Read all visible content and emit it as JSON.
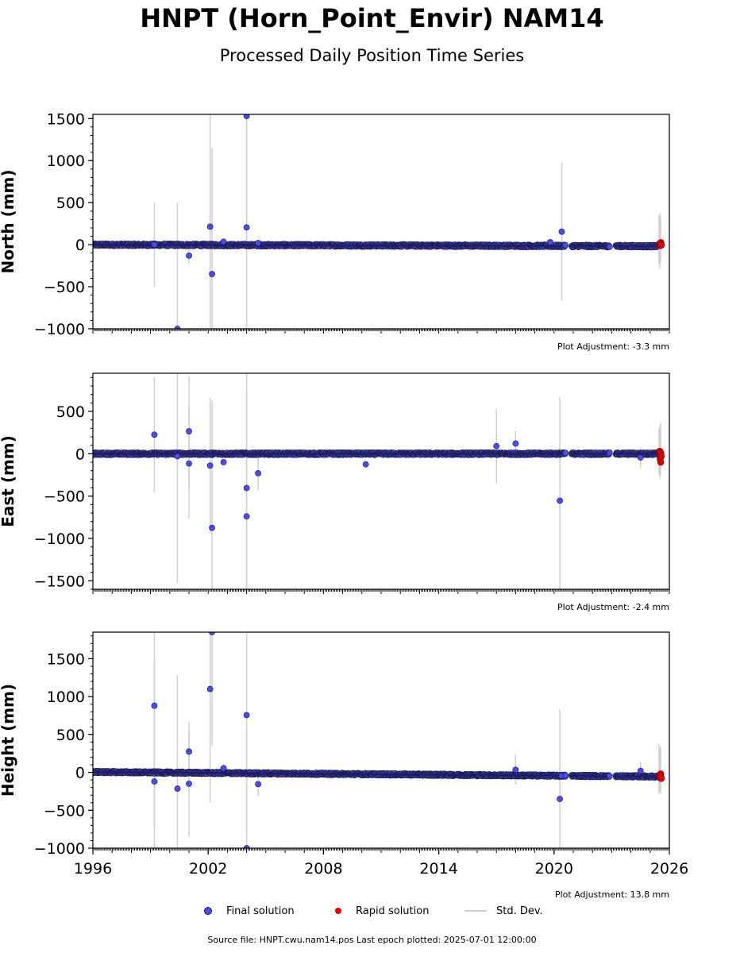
{
  "title": "HNPT (Horn_Point_Envir) NAM14",
  "subtitle": "Processed Daily Position Time Series",
  "source_text": "Source file: HNPT.cwu.nam14.pos  Last epoch plotted: 2025-07-01 12:00:00",
  "legend": {
    "final": "Final solution",
    "rapid": "Rapid solution",
    "stddev": "Std. Dev."
  },
  "colors": {
    "final": "#4b4bf0",
    "rapid": "#e00000",
    "stddev": "#cfcfcf",
    "marker_edge": "#1a1a4a"
  },
  "chart_data": [
    {
      "type": "scatter",
      "ylabel": "North (mm)",
      "adjustment": "Plot Adjustment: -3.3 mm",
      "xlim": [
        1996,
        2026
      ],
      "ylim": [
        -1000,
        1550
      ],
      "yticks": [
        -1000,
        -500,
        0,
        500,
        1000,
        1500
      ],
      "baseline": [
        [
          1996.0,
          0
        ],
        [
          2025.5,
          -18
        ]
      ],
      "outliers": [
        [
          1999.2,
          0,
          500
        ],
        [
          2000.4,
          -1000,
          1500
        ],
        [
          2001.0,
          -130,
          100
        ],
        [
          2002.1,
          215,
          1400
        ],
        [
          2002.2,
          -350,
          1500
        ],
        [
          2002.8,
          35,
          0
        ],
        [
          2004.0,
          1530,
          1500
        ],
        [
          2004.0,
          205,
          1500
        ],
        [
          2020.4,
          155,
          820
        ],
        [
          2004.6,
          20,
          0
        ],
        [
          2019.8,
          30,
          0
        ]
      ],
      "rapid": [
        [
          2025.5,
          15
        ],
        [
          2025.52,
          -10
        ],
        [
          2025.55,
          5
        ],
        [
          2025.56,
          25
        ],
        [
          2025.58,
          -5
        ]
      ],
      "gaps": [
        [
          2020.6,
          2020.9
        ],
        [
          2022.9,
          2023.2
        ]
      ]
    },
    {
      "type": "scatter",
      "ylabel": "East (mm)",
      "adjustment": "Plot Adjustment: -2.4 mm",
      "xlim": [
        1996,
        2026
      ],
      "ylim": [
        -1600,
        950
      ],
      "yticks": [
        -1500,
        -1000,
        -500,
        0,
        500
      ],
      "baseline": [
        [
          1996.0,
          0
        ],
        [
          2025.5,
          0
        ]
      ],
      "outliers": [
        [
          1999.2,
          225,
          680
        ],
        [
          2000.4,
          -30,
          1500
        ],
        [
          2001.0,
          265,
          650
        ],
        [
          2001.0,
          -115,
          650
        ],
        [
          2002.1,
          -140,
          800
        ],
        [
          2002.2,
          -875,
          1500
        ],
        [
          2002.8,
          -100,
          0
        ],
        [
          2004.0,
          -405,
          1500
        ],
        [
          2004.0,
          -740,
          1500
        ],
        [
          2004.6,
          -230,
          200
        ],
        [
          2010.2,
          -125,
          0
        ],
        [
          2017.0,
          90,
          440
        ],
        [
          2018.0,
          120,
          150
        ],
        [
          2020.3,
          -555,
          1220
        ],
        [
          2020.6,
          10,
          0
        ],
        [
          2024.5,
          -45,
          120
        ]
      ],
      "rapid": [
        [
          2025.5,
          30
        ],
        [
          2025.52,
          -60
        ],
        [
          2025.55,
          -100
        ],
        [
          2025.56,
          10
        ],
        [
          2025.58,
          -30
        ]
      ],
      "gaps": [
        [
          2020.6,
          2020.9
        ],
        [
          2022.9,
          2023.2
        ]
      ]
    },
    {
      "type": "scatter",
      "ylabel": "Height (mm)",
      "adjustment": "Plot Adjustment: 13.8 mm",
      "xlim": [
        1996,
        2026
      ],
      "xticks": [
        1996,
        2002,
        2008,
        2014,
        2020,
        2026
      ],
      "ylim": [
        -1000,
        1850
      ],
      "yticks": [
        -1000,
        -500,
        0,
        500,
        1000,
        1500
      ],
      "baseline": [
        [
          1996.0,
          5
        ],
        [
          2025.5,
          -55
        ]
      ],
      "outliers": [
        [
          1999.2,
          880,
          1600
        ],
        [
          1999.2,
          -120,
          1600
        ],
        [
          2000.4,
          -215,
          1500
        ],
        [
          2001.0,
          275,
          380
        ],
        [
          2001.0,
          -150,
          700
        ],
        [
          2002.1,
          1100,
          1500
        ],
        [
          2002.2,
          1850,
          1500
        ],
        [
          2002.8,
          55,
          0
        ],
        [
          2004.0,
          755,
          1500
        ],
        [
          2004.0,
          -1000,
          1500
        ],
        [
          2004.6,
          -155,
          150
        ],
        [
          2018.0,
          35,
          200
        ],
        [
          2020.3,
          -350,
          1180
        ],
        [
          2020.4,
          -45,
          0
        ],
        [
          2020.6,
          -40,
          0
        ],
        [
          2024.5,
          20,
          120
        ]
      ],
      "rapid": [
        [
          2025.5,
          -40
        ],
        [
          2025.52,
          -70
        ],
        [
          2025.55,
          -20
        ],
        [
          2025.56,
          -55
        ],
        [
          2025.58,
          -80
        ]
      ],
      "gaps": [
        [
          2020.6,
          2020.9
        ],
        [
          2022.9,
          2023.2
        ]
      ]
    }
  ]
}
